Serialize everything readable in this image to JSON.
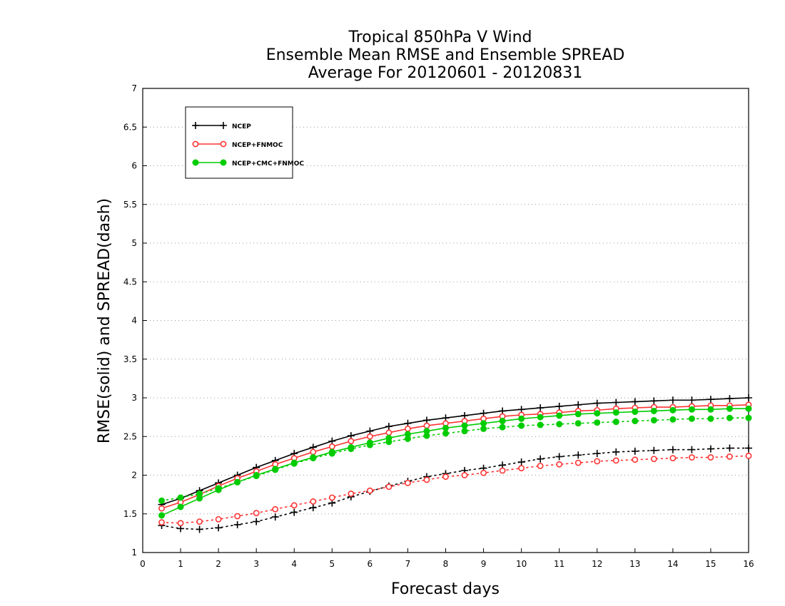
{
  "chart_data": {
    "type": "line",
    "title_lines": [
      "Tropical 850hPa V Wind",
      "Ensemble Mean RMSE and Ensemble SPREAD",
      "Average For 20120601 - 20120831"
    ],
    "xlabel": "Forecast days",
    "ylabel": "RMSE(solid) and SPREAD(dash)",
    "xlim": [
      0,
      16
    ],
    "ylim": [
      1,
      7
    ],
    "x_ticks": [
      "0",
      "1",
      "2",
      "3",
      "4",
      "5",
      "6",
      "7",
      "8",
      "9",
      "10",
      "11",
      "12",
      "13",
      "14",
      "15",
      "16"
    ],
    "y_ticks": [
      "1",
      "1.5",
      "2",
      "2.5",
      "3",
      "3.5",
      "4",
      "4.5",
      "5",
      "5.5",
      "6",
      "6.5",
      "7"
    ],
    "grid": "horizontal dotted",
    "legend_position": "top-left",
    "x": [
      0.5,
      1,
      1.5,
      2,
      2.5,
      3,
      3.5,
      4,
      4.5,
      5,
      5.5,
      6,
      6.5,
      7,
      7.5,
      8,
      8.5,
      9,
      9.5,
      10,
      10.5,
      11,
      11.5,
      12,
      12.5,
      13,
      13.5,
      14,
      14.5,
      15,
      15.5,
      16
    ],
    "series": [
      {
        "name": "NCEP",
        "color": "#000000",
        "marker": "plus",
        "rmse": [
          1.62,
          1.7,
          1.8,
          1.9,
          2.0,
          2.1,
          2.19,
          2.28,
          2.36,
          2.44,
          2.51,
          2.57,
          2.63,
          2.67,
          2.71,
          2.74,
          2.77,
          2.8,
          2.83,
          2.85,
          2.87,
          2.89,
          2.91,
          2.93,
          2.94,
          2.95,
          2.96,
          2.97,
          2.97,
          2.98,
          2.99,
          3.0
        ],
        "spread": [
          1.35,
          1.31,
          1.3,
          1.32,
          1.36,
          1.4,
          1.46,
          1.52,
          1.58,
          1.64,
          1.72,
          1.79,
          1.86,
          1.92,
          1.98,
          2.02,
          2.06,
          2.09,
          2.13,
          2.17,
          2.21,
          2.24,
          2.26,
          2.28,
          2.3,
          2.31,
          2.32,
          2.33,
          2.33,
          2.34,
          2.35,
          2.35
        ]
      },
      {
        "name": "NCEP+FNMOC",
        "color": "#ff3333",
        "marker": "open-circle",
        "rmse": [
          1.57,
          1.65,
          1.75,
          1.86,
          1.96,
          2.05,
          2.14,
          2.22,
          2.3,
          2.37,
          2.44,
          2.5,
          2.55,
          2.6,
          2.64,
          2.67,
          2.7,
          2.73,
          2.76,
          2.78,
          2.79,
          2.81,
          2.83,
          2.84,
          2.86,
          2.87,
          2.88,
          2.88,
          2.89,
          2.9,
          2.9,
          2.91
        ],
        "spread": [
          1.39,
          1.38,
          1.4,
          1.43,
          1.47,
          1.51,
          1.56,
          1.61,
          1.66,
          1.71,
          1.76,
          1.8,
          1.85,
          1.9,
          1.94,
          1.98,
          2.0,
          2.03,
          2.06,
          2.09,
          2.12,
          2.14,
          2.16,
          2.18,
          2.19,
          2.2,
          2.21,
          2.22,
          2.23,
          2.23,
          2.24,
          2.25
        ]
      },
      {
        "name": "NCEP+CMC+FNMOC",
        "color": "#00cc00",
        "marker": "filled-circle",
        "rmse": [
          1.48,
          1.59,
          1.7,
          1.81,
          1.91,
          2.0,
          2.08,
          2.16,
          2.23,
          2.3,
          2.36,
          2.42,
          2.48,
          2.53,
          2.57,
          2.61,
          2.64,
          2.67,
          2.7,
          2.73,
          2.75,
          2.77,
          2.79,
          2.8,
          2.81,
          2.82,
          2.83,
          2.84,
          2.85,
          2.85,
          2.86,
          2.86
        ],
        "spread": [
          1.67,
          1.71,
          1.76,
          1.83,
          1.91,
          1.99,
          2.07,
          2.15,
          2.22,
          2.28,
          2.34,
          2.39,
          2.43,
          2.47,
          2.51,
          2.54,
          2.57,
          2.6,
          2.62,
          2.64,
          2.65,
          2.66,
          2.67,
          2.68,
          2.69,
          2.7,
          2.71,
          2.72,
          2.73,
          2.73,
          2.74,
          2.74
        ]
      }
    ]
  }
}
